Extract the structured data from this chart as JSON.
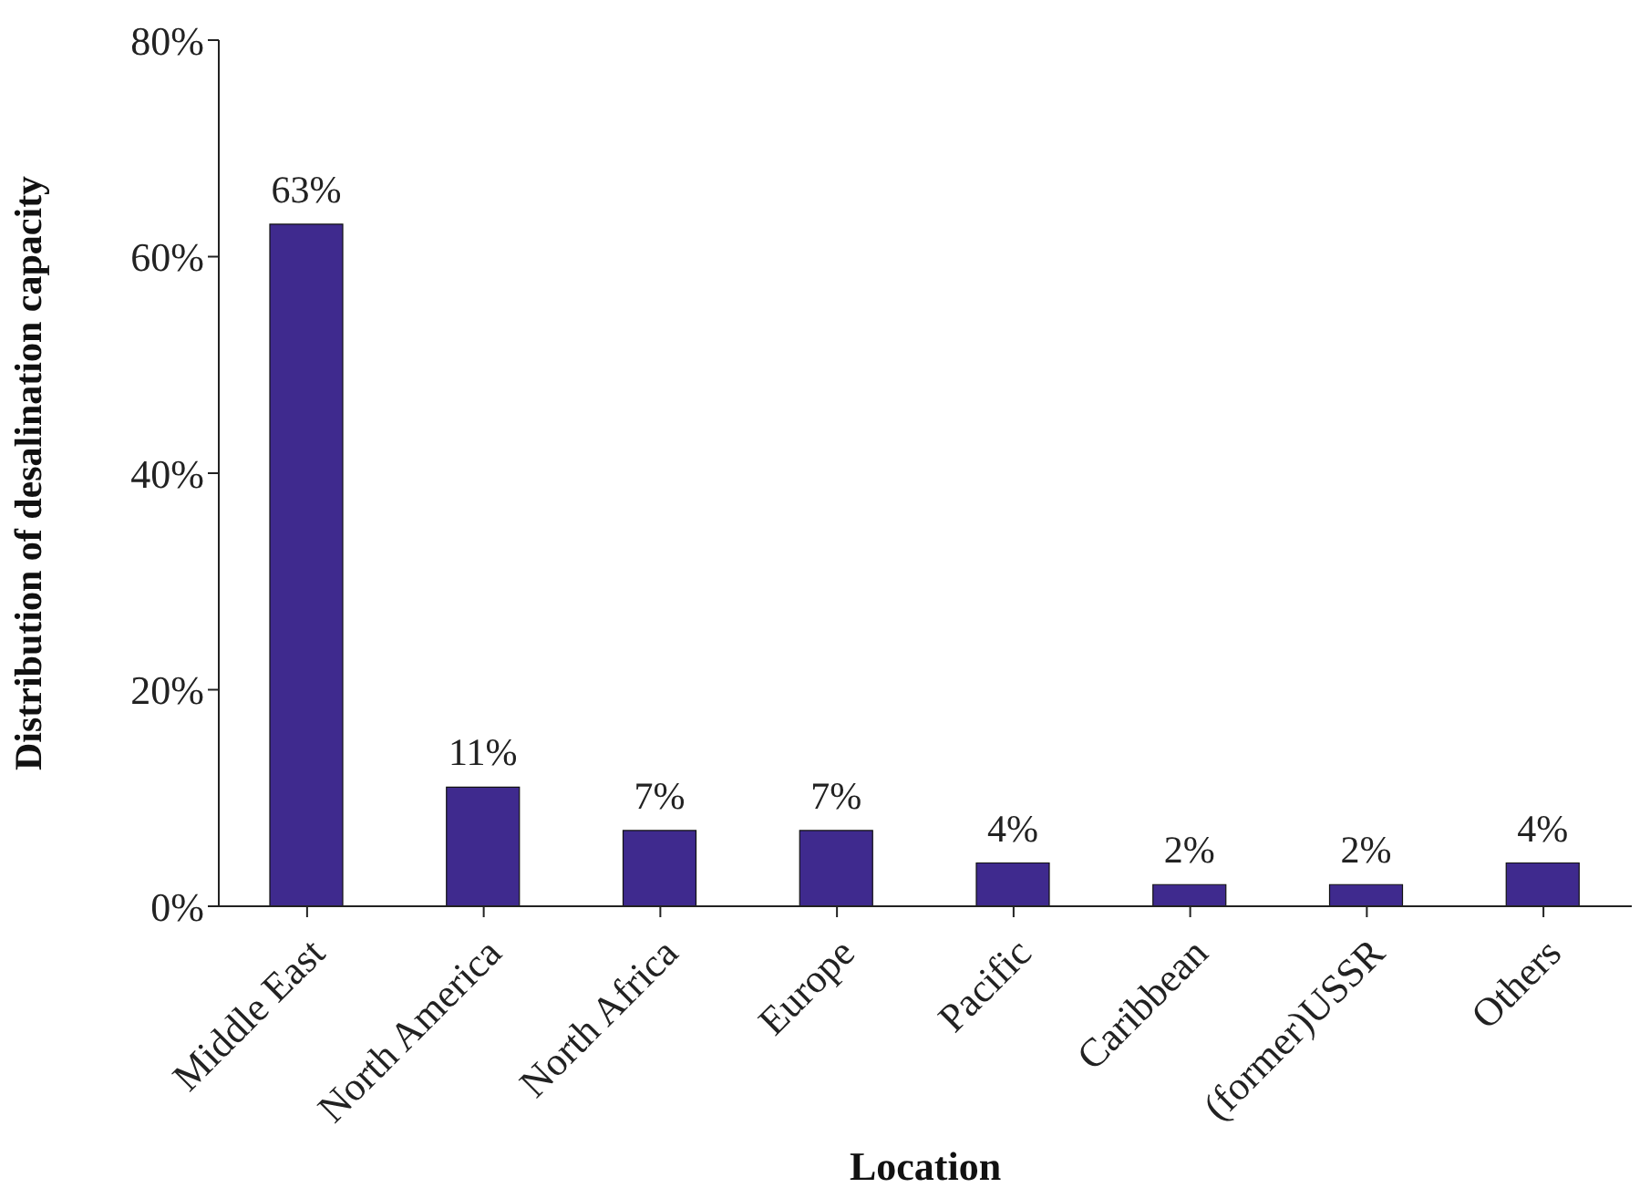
{
  "chart_data": {
    "type": "bar",
    "xlabel": "Location",
    "ylabel": "Distribution of desalination capacity",
    "categories": [
      "Middle East",
      "North America",
      "North Africa",
      "Europe",
      "Pacific",
      "Caribbean",
      "(former)USSR",
      "Others"
    ],
    "values": [
      63,
      11,
      7,
      7,
      4,
      2,
      2,
      4
    ],
    "value_labels": [
      "63%",
      "11%",
      "7%",
      "7%",
      "4%",
      "2%",
      "2%",
      "4%"
    ],
    "color": "#3f2a8e",
    "ylim": [
      0,
      80
    ],
    "yticks": [
      {
        "value": 0,
        "label": "0%"
      },
      {
        "value": 20,
        "label": "20%"
      },
      {
        "value": 40,
        "label": "40%"
      },
      {
        "value": 60,
        "label": "60%"
      },
      {
        "value": 80,
        "label": "80%"
      }
    ],
    "grid": false,
    "legend": false
  }
}
